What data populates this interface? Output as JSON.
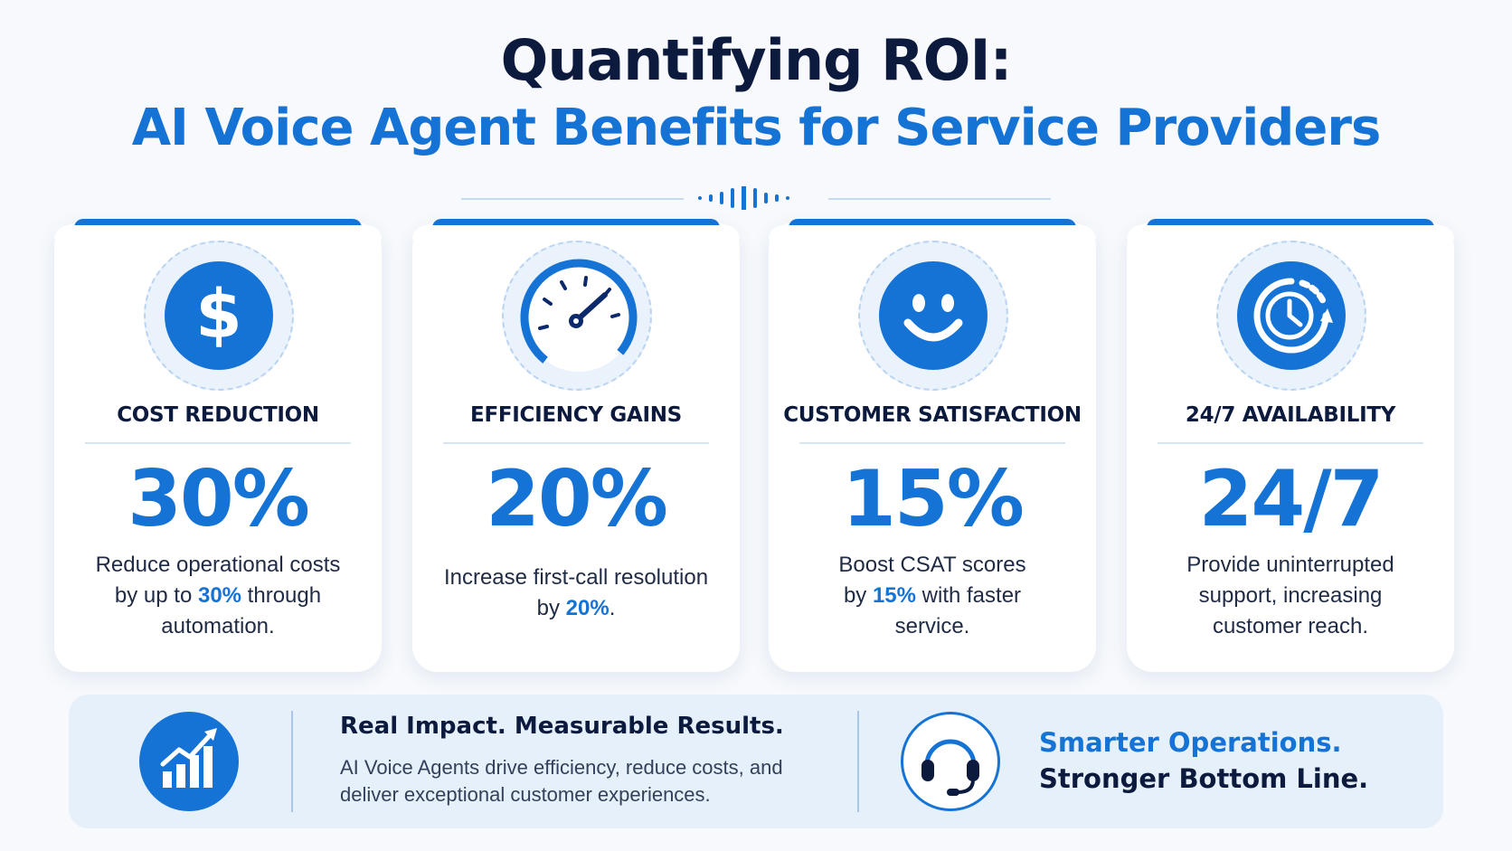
{
  "header": {
    "title_line1": "Quantifying ROI:",
    "title_line2": "AI Voice Agent Benefits for Service Providers"
  },
  "colors": {
    "accent": "#1673d6",
    "navy": "#0c1a3e",
    "background": "#f7f9fc"
  },
  "cards": [
    {
      "icon": "dollar-icon",
      "title": "COST REDUCTION",
      "value": "30%",
      "desc_before": "Reduce operational costs by up to ",
      "desc_highlight": "30%",
      "desc_after": " through automation."
    },
    {
      "icon": "speedometer-icon",
      "title": "EFFICIENCY GAINS",
      "value": "20%",
      "desc_before": "Increase first-call resolution by ",
      "desc_highlight": "20%",
      "desc_after": "."
    },
    {
      "icon": "smiley-icon",
      "title": "CUSTOMER SATISFACTION",
      "value": "15%",
      "desc_before": "Boost CSAT scores by ",
      "desc_highlight": "15%",
      "desc_after": " with faster service."
    },
    {
      "icon": "clock-cycle-icon",
      "title": "24/7 AVAILABILITY",
      "value": "24/7",
      "desc_before": "Provide uninterrupted support, increasing customer reach.",
      "desc_highlight": "",
      "desc_after": ""
    }
  ],
  "banner": {
    "icon_left": "growth-chart-icon",
    "heading": "Real Impact. Measurable Results.",
    "text": "AI Voice Agents drive efficiency, reduce costs, and deliver exceptional customer experiences.",
    "icon_right": "headset-icon",
    "tagline1": "Smarter Operations.",
    "tagline2": "Stronger Bottom Line."
  }
}
